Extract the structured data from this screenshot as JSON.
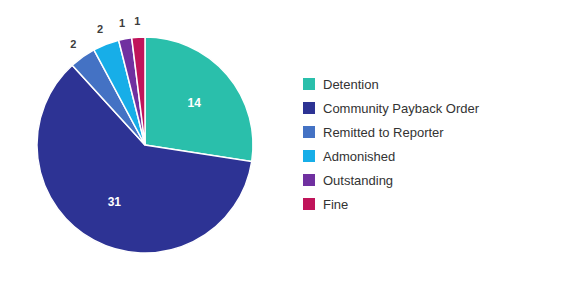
{
  "chart_data": {
    "type": "pie",
    "categories": [
      "Detention",
      "Community Payback Order",
      "Remitted to Reporter",
      "Admonished",
      "Outstanding",
      "Fine"
    ],
    "values": [
      14,
      31,
      2,
      2,
      1,
      1
    ],
    "colors": [
      "#2abfab",
      "#2d3394",
      "#4472c4",
      "#17aee8",
      "#7030a0",
      "#c0145a"
    ],
    "data_labels": true,
    "legend": "right"
  }
}
